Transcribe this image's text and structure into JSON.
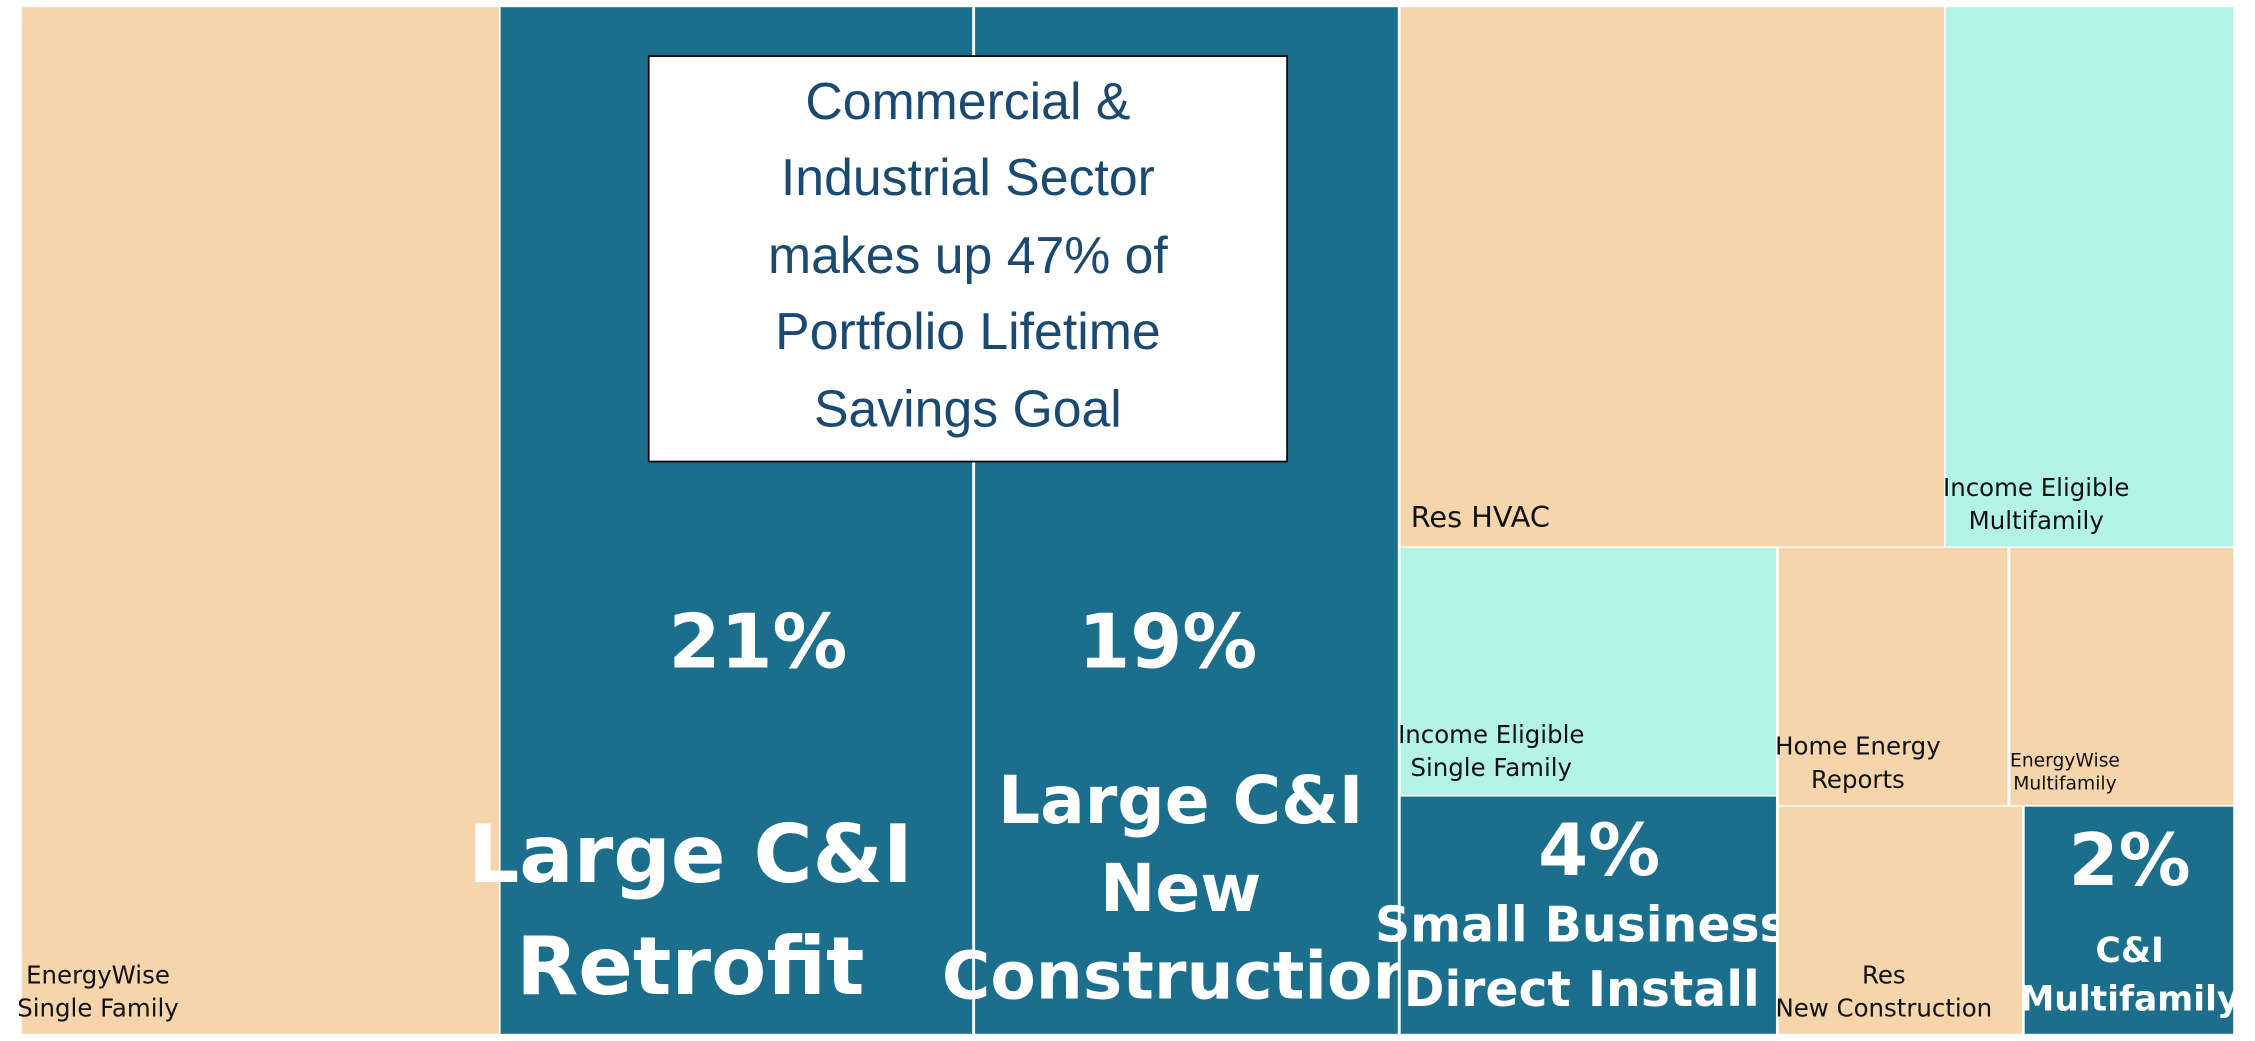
{
  "chart_data": {
    "type": "treemap",
    "annotation": "Commercial &\nIndustrial Sector\nmakes up 47% of\nPortfolio Lifetime\nSavings Goal",
    "categories": [
      "EnergyWise\nSingle Family",
      "Large C&I\nRetrofit",
      "Large C&I\nNew\nConstruction",
      "Res HVAC",
      "Income Eligible\nMultifamily",
      "Income Eligible\nSingle Family",
      "Small Business\nDirect Install",
      "Home Energy\nReports",
      "EnergyWise\nMultifamily",
      "Res\nNew Construction",
      "C&I\nMultifamily"
    ],
    "values": [
      21.6,
      21,
      19,
      12.9,
      6.8,
      4.1,
      4,
      2.6,
      2.5,
      2.4,
      2
    ],
    "value_labels": [
      null,
      "21%",
      "19%",
      null,
      null,
      null,
      "4%",
      null,
      null,
      null,
      "2%"
    ],
    "colors": [
      "#f5d5ab",
      "#1b6f8c",
      "#1b6f8c",
      "#f5d5ab",
      "#b3f2e7",
      "#b3f2e7",
      "#1b6f8c",
      "#f5d5ab",
      "#f5d5ab",
      "#f5d5ab",
      "#1b6f8c"
    ]
  }
}
